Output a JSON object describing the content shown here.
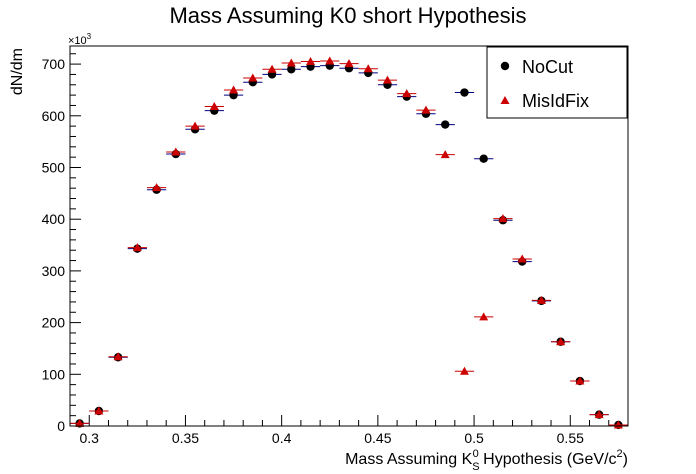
{
  "chart_data": {
    "type": "scatter",
    "title": "Mass Assuming K0 short Hypothesis",
    "ylabel": "dN/dm",
    "xlabel": {
      "pre": "Mass Assuming K",
      "sub": "S",
      "sup": "0",
      "post": " Hypothesis (GeV/c",
      "post_sup": "2",
      "close": ")"
    },
    "y_multiplier": "×10",
    "y_multiplier_exp": "3",
    "xlim": [
      0.29,
      0.58
    ],
    "ylim": [
      0,
      735
    ],
    "bin_width": 0.01,
    "grid": false,
    "legend_position": "top-right",
    "x_ticks": [
      {
        "value": 0.3,
        "label": "0.3"
      },
      {
        "value": 0.35,
        "label": "0.35"
      },
      {
        "value": 0.4,
        "label": "0.4"
      },
      {
        "value": 0.45,
        "label": "0.45"
      },
      {
        "value": 0.5,
        "label": "0.5"
      },
      {
        "value": 0.55,
        "label": "0.55"
      }
    ],
    "y_ticks": [
      {
        "value": 0,
        "label": "0"
      },
      {
        "value": 100,
        "label": "100"
      },
      {
        "value": 200,
        "label": "200"
      },
      {
        "value": 300,
        "label": "300"
      },
      {
        "value": 400,
        "label": "400"
      },
      {
        "value": 500,
        "label": "500"
      },
      {
        "value": 600,
        "label": "600"
      },
      {
        "value": 700,
        "label": "700"
      }
    ],
    "series": [
      {
        "name": "NoCut",
        "marker": "circle",
        "color": "#000000",
        "x": [
          0.295,
          0.305,
          0.315,
          0.325,
          0.335,
          0.345,
          0.355,
          0.365,
          0.375,
          0.385,
          0.395,
          0.405,
          0.415,
          0.425,
          0.435,
          0.445,
          0.455,
          0.465,
          0.475,
          0.485,
          0.495,
          0.505,
          0.515,
          0.525,
          0.535,
          0.545,
          0.555,
          0.565,
          0.575
        ],
        "y": [
          5,
          29,
          133,
          343,
          457,
          526,
          574,
          610,
          640,
          665,
          680,
          690,
          695,
          697,
          692,
          683,
          660,
          637,
          604,
          583,
          645,
          517,
          398,
          318,
          242,
          163,
          87,
          22,
          2
        ]
      },
      {
        "name": "MisIdFix",
        "marker": "triangle",
        "color": "#cc0000",
        "x": [
          0.295,
          0.305,
          0.315,
          0.325,
          0.335,
          0.345,
          0.355,
          0.365,
          0.375,
          0.385,
          0.395,
          0.405,
          0.415,
          0.425,
          0.435,
          0.445,
          0.455,
          0.465,
          0.475,
          0.485,
          0.495,
          0.505,
          0.515,
          0.525,
          0.535,
          0.545,
          0.555,
          0.565,
          0.575
        ],
        "y": [
          5,
          29,
          134,
          345,
          461,
          530,
          580,
          618,
          650,
          673,
          690,
          702,
          705,
          706,
          701,
          691,
          669,
          643,
          611,
          525,
          106,
          211,
          401,
          323,
          243,
          163,
          87,
          22,
          2
        ]
      }
    ]
  }
}
